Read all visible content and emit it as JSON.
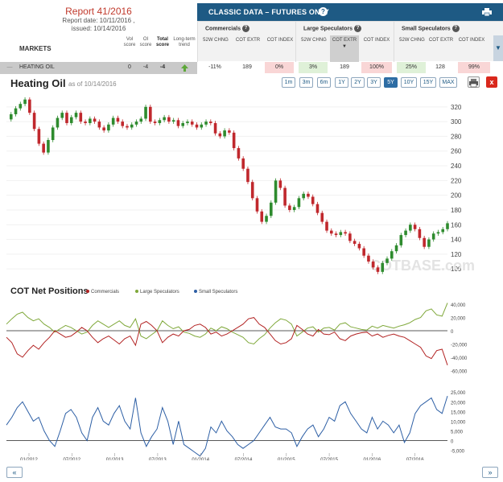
{
  "report": {
    "title": "Report 41/2016",
    "date_line": "Report date: 10/11/2016 ,",
    "issued_line": "issued: 10/14/2016"
  },
  "columns": {
    "markets": "MARKETS",
    "vol": "Vol score",
    "oi": "OI score",
    "total": "Total score",
    "trend": "Long-term trend"
  },
  "classic": {
    "title": "CLASSIC DATA – FUTURES ONLY",
    "help_icon": "help-icon",
    "printer_icon": "printer-icon"
  },
  "groups": [
    {
      "name": "Commercials",
      "cols": [
        "52W CHNG",
        "COT EXTR",
        "COT INDEX"
      ]
    },
    {
      "name": "Large Speculators",
      "cols": [
        "52W CHNG",
        "COT EXTR",
        "COT INDEX"
      ]
    },
    {
      "name": "Small Speculators",
      "cols": [
        "52W CHNG",
        "COT EXTR",
        "COT INDEX"
      ]
    }
  ],
  "row": {
    "market": "HEATING OIL",
    "vol": "0",
    "oi": "-4",
    "total": "-4",
    "trend_icon": "up-arrow-icon",
    "comm": {
      "chng": "-11%",
      "extr": "189",
      "index": "0%"
    },
    "large": {
      "chng": "3%",
      "extr": "189",
      "index": "100%"
    },
    "small": {
      "chng": "25%",
      "extr": "128",
      "index": "99%"
    }
  },
  "chart_header": {
    "title": "Heating Oil",
    "subtitle": "as of 10/14/2016"
  },
  "ranges": [
    "1m",
    "3m",
    "6m",
    "1Y",
    "2Y",
    "3Y",
    "5Y",
    "10Y",
    "15Y",
    "MAX"
  ],
  "active_range": "5Y",
  "cot": {
    "title": "COT Net Positions",
    "legend": [
      "Commercials",
      "Large Speculators",
      "Small Speculators"
    ]
  },
  "watermark": "COTBASE.com",
  "colors": {
    "header": "#1e5a84",
    "commercials": "#b22222",
    "large": "#7fa83a",
    "small": "#2d5fa5",
    "price_up": "#2e8b2e",
    "price_down": "#c0282d"
  },
  "pager": {
    "prev": "«",
    "next": "»"
  },
  "chart_data": {
    "type": "line",
    "x_tick_labels": [
      "01/2012",
      "07/2012",
      "01/2013",
      "07/2013",
      "01/2014",
      "07/2014",
      "01/2015",
      "07/2015",
      "01/2016",
      "07/2016"
    ],
    "price": {
      "name": "Heating Oil",
      "ylim": [
        86,
        334
      ],
      "y_ticks": [
        100,
        120,
        140,
        160,
        180,
        200,
        220,
        240,
        260,
        280,
        300,
        320
      ],
      "values": [
        303,
        310,
        318,
        324,
        330,
        312,
        290,
        270,
        258,
        275,
        292,
        305,
        312,
        298,
        306,
        312,
        300,
        298,
        304,
        300,
        292,
        288,
        296,
        305,
        300,
        294,
        292,
        296,
        300,
        304,
        320,
        300,
        298,
        302,
        306,
        300,
        302,
        294,
        298,
        300,
        296,
        292,
        296,
        300,
        298,
        284,
        280,
        288,
        285,
        264,
        250,
        236,
        218,
        196,
        178,
        164,
        172,
        190,
        220,
        210,
        186,
        180,
        184,
        196,
        202,
        198,
        188,
        176,
        164,
        152,
        148,
        146,
        150,
        148,
        138,
        134,
        128,
        118,
        110,
        102,
        96,
        108,
        114,
        124,
        132,
        146,
        152,
        160,
        154,
        142,
        130,
        140,
        148,
        150,
        154,
        162
      ]
    },
    "commercials": {
      "name": "Commercials",
      "values": [
        -10,
        -18,
        -35,
        -40,
        -30,
        -22,
        -28,
        -18,
        -10,
        0,
        -5,
        -10,
        -8,
        -2,
        5,
        0,
        -10,
        -18,
        -12,
        -8,
        -14,
        -20,
        -12,
        -8,
        -22,
        10,
        14,
        8,
        0,
        -18,
        -10,
        -5,
        -8,
        0,
        2,
        8,
        10,
        5,
        -5,
        -2,
        -8,
        -5,
        0,
        5,
        10,
        18,
        20,
        10,
        5,
        -5,
        -15,
        -20,
        -18,
        -12,
        8,
        2,
        -5,
        -8,
        2,
        -5,
        -6,
        -2,
        -12,
        -15,
        -8,
        -5,
        -3,
        -2,
        -8,
        -5,
        -10,
        -7,
        -5,
        -8,
        -10,
        -15,
        -20,
        -25,
        -38,
        -42,
        -30,
        -28,
        -52
      ],
      "ylim": [
        -62,
        45
      ],
      "y_ticks": [
        -60000,
        -40000,
        -20000,
        0,
        20000,
        40000
      ]
    },
    "large_speculators": {
      "name": "Large Speculators",
      "values": [
        10,
        18,
        25,
        28,
        20,
        15,
        18,
        10,
        5,
        -2,
        3,
        8,
        5,
        0,
        -5,
        -2,
        8,
        15,
        10,
        5,
        10,
        15,
        8,
        5,
        18,
        -8,
        -12,
        -6,
        0,
        15,
        8,
        3,
        6,
        -2,
        -4,
        -8,
        -10,
        -5,
        4,
        0,
        6,
        3,
        -2,
        -6,
        -10,
        -18,
        -20,
        -12,
        -6,
        4,
        12,
        18,
        16,
        10,
        -8,
        -2,
        4,
        6,
        -2,
        4,
        5,
        1,
        10,
        12,
        6,
        4,
        2,
        1,
        7,
        4,
        8,
        6,
        4,
        7,
        9,
        12,
        17,
        20,
        30,
        33,
        24,
        22,
        42
      ],
      "ylim": [
        -62,
        45
      ]
    },
    "small_speculators": {
      "name": "Small Speculators",
      "values": [
        8,
        12,
        17,
        20,
        15,
        10,
        12,
        5,
        0,
        -3,
        5,
        14,
        16,
        12,
        4,
        0,
        12,
        17,
        10,
        8,
        14,
        18,
        10,
        6,
        22,
        4,
        -3,
        2,
        6,
        17,
        10,
        -2,
        10,
        -2,
        -4,
        -6,
        -8,
        -4,
        7,
        4,
        10,
        5,
        2,
        -2,
        -4,
        -2,
        0,
        4,
        8,
        12,
        7,
        6,
        6,
        4,
        -3,
        2,
        6,
        8,
        2,
        6,
        12,
        10,
        18,
        20,
        14,
        10,
        6,
        4,
        12,
        6,
        10,
        8,
        4,
        8,
        -1,
        4,
        14,
        18,
        20,
        22,
        16,
        14,
        23
      ],
      "ylim": [
        -6,
        28
      ],
      "y_ticks": [
        -5000,
        0,
        5000,
        10000,
        15000,
        20000,
        25000
      ]
    }
  }
}
